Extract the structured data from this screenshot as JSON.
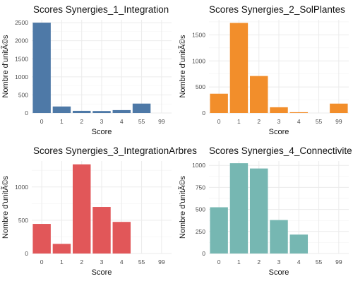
{
  "chart_data": [
    {
      "type": "bar",
      "title": "Scores Synergies_1_Integration",
      "xlabel": "Score",
      "ylabel": "Nombre d'unitÃ©s",
      "categories": [
        "0",
        "1",
        "2",
        "3",
        "4",
        "55",
        "99"
      ],
      "values": [
        2500,
        180,
        60,
        55,
        80,
        260,
        0
      ],
      "color": "#4e79a7",
      "ylim": [
        0,
        2580
      ],
      "yticks": [
        0,
        500,
        1000,
        1500,
        2000,
        2500
      ],
      "grid": true
    },
    {
      "type": "bar",
      "title": "Scores Synergies_2_SolPlantes",
      "xlabel": "Score",
      "ylabel": "Nombre d'unitÃ©s",
      "categories": [
        "0",
        "1",
        "2",
        "3",
        "4",
        "55",
        "99"
      ],
      "values": [
        370,
        1730,
        710,
        110,
        15,
        0,
        180
      ],
      "color": "#f28e2b",
      "ylim": [
        0,
        1790
      ],
      "yticks": [
        0,
        500,
        1000,
        1500
      ],
      "grid": true
    },
    {
      "type": "bar",
      "title": "Scores Synergies_3_IntegrationArbres",
      "xlabel": "Score",
      "ylabel": "Nombre d'unitÃ©s",
      "categories": [
        "0",
        "1",
        "2",
        "3",
        "4",
        "55",
        "99"
      ],
      "values": [
        445,
        145,
        1340,
        700,
        475,
        0,
        0
      ],
      "color": "#e15759",
      "ylim": [
        0,
        1390
      ],
      "yticks": [
        0,
        500,
        1000
      ],
      "grid": true
    },
    {
      "type": "bar",
      "title": "Scores Synergies_4_Connectivite",
      "xlabel": "Score",
      "ylabel": "Nombre d'unitÃ©s",
      "categories": [
        "0",
        "1",
        "2",
        "3",
        "4",
        "55",
        "99"
      ],
      "values": [
        525,
        1025,
        965,
        380,
        215,
        0,
        0
      ],
      "color": "#76b7b2",
      "ylim": [
        0,
        1050
      ],
      "yticks": [
        0,
        250,
        500,
        750,
        1000
      ],
      "grid": true
    }
  ]
}
